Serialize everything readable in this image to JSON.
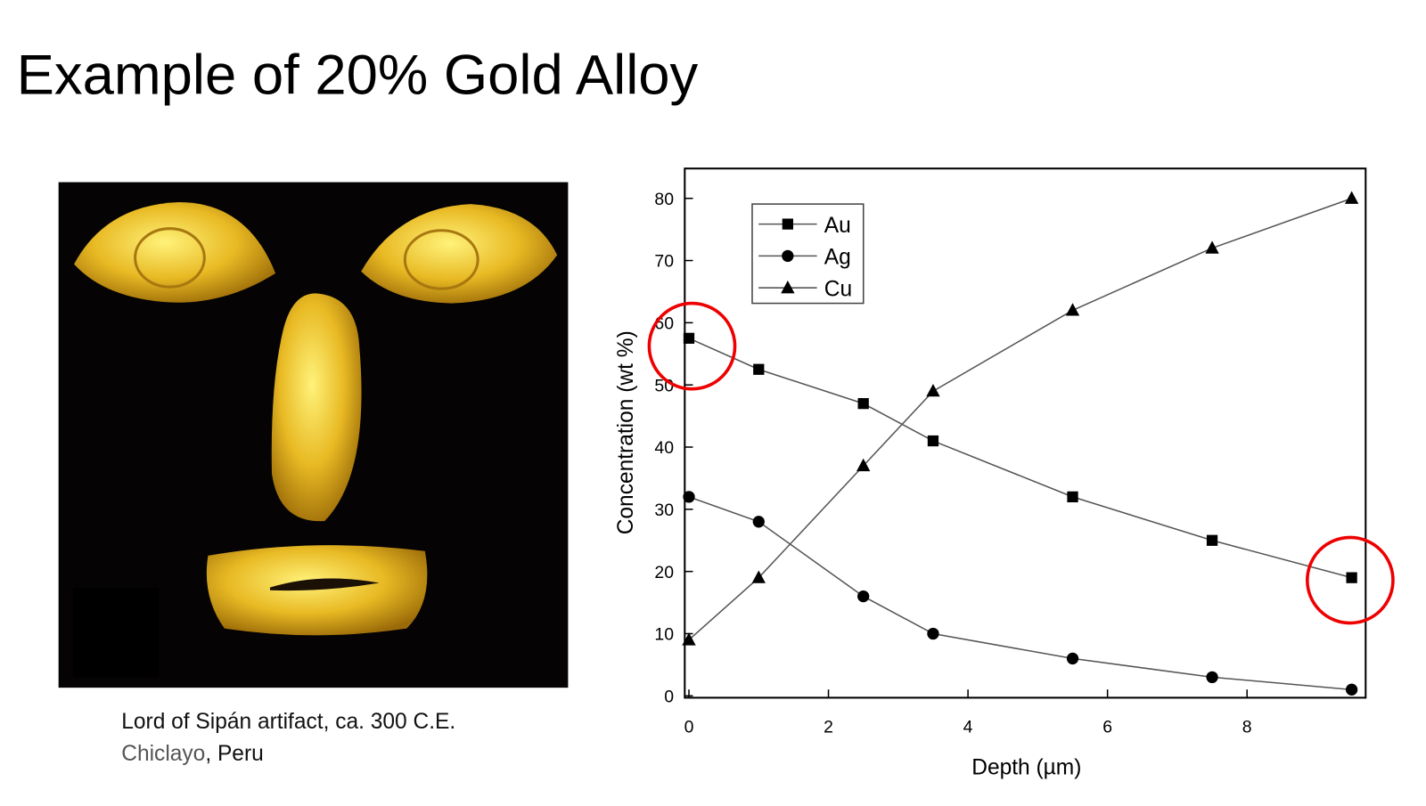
{
  "slide_title": "Example of 20% Gold Alloy",
  "caption": {
    "line1": "Lord of Sipán artifact, ca. 300 C.E.",
    "place_link": "Chiclayo",
    "place_rest": ", Peru"
  },
  "chart_data": {
    "type": "line",
    "x_label": "Depth (µm)",
    "y_label": "Concentration (wt %)",
    "x": [
      0,
      1,
      2.5,
      3.5,
      5.5,
      7.5,
      9.5
    ],
    "series": [
      {
        "name": "Au",
        "color": "#000000",
        "marker": "square",
        "values": [
          57.5,
          52.5,
          47,
          41,
          32,
          25,
          19
        ]
      },
      {
        "name": "Ag",
        "color": "#000000",
        "marker": "circle",
        "values": [
          32,
          28,
          16,
          10,
          6,
          3,
          1
        ]
      },
      {
        "name": "Cu",
        "color": "#000000",
        "marker": "triangle",
        "values": [
          9,
          19,
          37,
          49,
          62,
          72,
          80
        ]
      }
    ],
    "xlim": [
      -0.06,
      9.7
    ],
    "ylim": [
      -0.3,
      84.8
    ],
    "xticks": [
      0,
      2,
      4,
      6,
      8
    ],
    "yticks": [
      0,
      10,
      20,
      30,
      40,
      50,
      60,
      70,
      80
    ],
    "legend": "upper left"
  }
}
